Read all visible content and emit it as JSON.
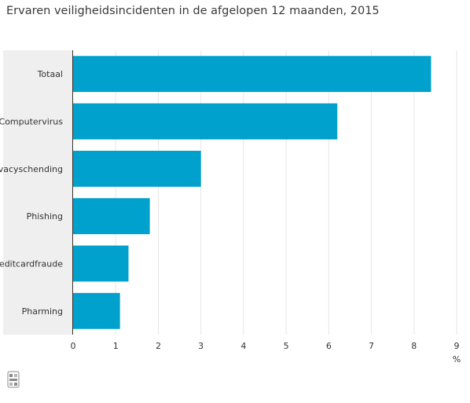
{
  "chart_data": {
    "type": "bar",
    "orientation": "horizontal",
    "title": "Ervaren veiligheidsincidenten in de afgelopen 12 maanden, 2015",
    "categories": [
      "Totaal",
      "Computervirus",
      "Privacyschending",
      "Phishing",
      "Creditcardfraude",
      "Pharming"
    ],
    "category_labels_shown": [
      "Totaal",
      "Computervirus",
      "ivacyschending",
      "Phishing",
      "reditcardfraude",
      "Pharming"
    ],
    "values": [
      8.4,
      6.2,
      3.0,
      1.8,
      1.3,
      1.1
    ],
    "xlabel": "%",
    "xlim": [
      0,
      9
    ],
    "xticks": [
      "0",
      "1",
      "2",
      "3",
      "4",
      "5",
      "6",
      "7",
      "8",
      "9"
    ],
    "grid": true,
    "bar_color": "#00a1cd",
    "label_panel_color": "#efefef",
    "grid_color": "#e6e6e6"
  },
  "logo": {
    "name": "cbs-logo-icon",
    "text": "cbs"
  }
}
